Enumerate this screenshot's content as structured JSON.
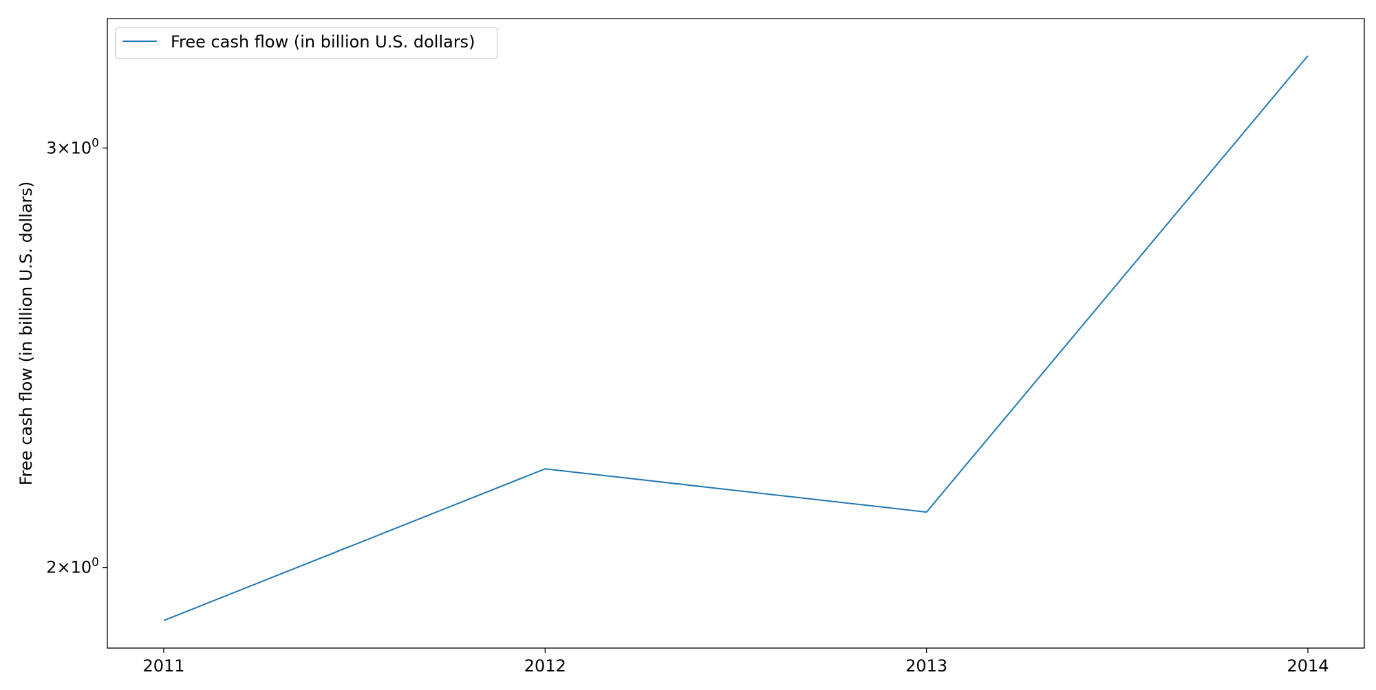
{
  "chart_data": {
    "type": "line",
    "title": "",
    "xlabel": "",
    "ylabel": "Free cash flow (in billion U.S. dollars)",
    "x": [
      "2011",
      "2012",
      "2013",
      "2014"
    ],
    "series": [
      {
        "name": "Free cash flow (in billion U.S. dollars)",
        "values": [
          1.9,
          2.2,
          2.11,
          3.28
        ],
        "color": "#1f77b4"
      }
    ],
    "yscale": "log",
    "ylim": [
      1.85,
      3.4
    ],
    "yticks": [
      {
        "value": 2,
        "mantissa": "2",
        "base": "10",
        "exponent": "0"
      },
      {
        "value": 3,
        "mantissa": "3",
        "base": "10",
        "exponent": "0"
      }
    ],
    "times_sign": "×",
    "grid": false,
    "legend_position": "upper-left"
  }
}
